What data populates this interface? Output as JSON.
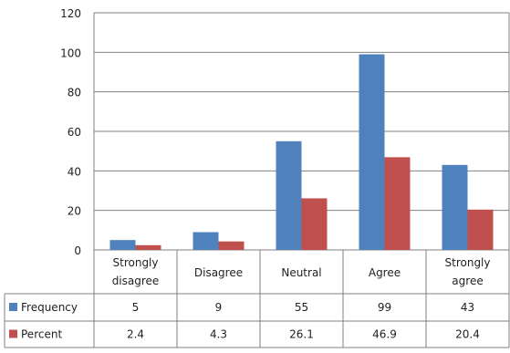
{
  "chart_data": {
    "type": "bar",
    "categories": [
      "Strongly disagree",
      "Disagree",
      "Neutral",
      "Agree",
      "Strongly agree"
    ],
    "category_lines": [
      [
        "Strongly",
        "disagree"
      ],
      [
        "Disagree"
      ],
      [
        "Neutral"
      ],
      [
        "Agree"
      ],
      [
        "Strongly",
        "agree"
      ]
    ],
    "series": [
      {
        "name": "Frequency",
        "color": "#4f81bd",
        "values": [
          5,
          9,
          55,
          99,
          43
        ],
        "labels": [
          "5",
          "9",
          "55",
          "99",
          "43"
        ]
      },
      {
        "name": "Percent",
        "color": "#c0504d",
        "values": [
          2.4,
          4.3,
          26.1,
          46.9,
          20.4
        ],
        "labels": [
          "2.4",
          "4.3",
          "26.1",
          "46.9",
          "20.4"
        ]
      }
    ],
    "ylim": [
      0,
      120
    ],
    "yticks": [
      "0",
      "20",
      "40",
      "60",
      "80",
      "100",
      "120"
    ],
    "grid": true,
    "legend": "data table below chart"
  }
}
